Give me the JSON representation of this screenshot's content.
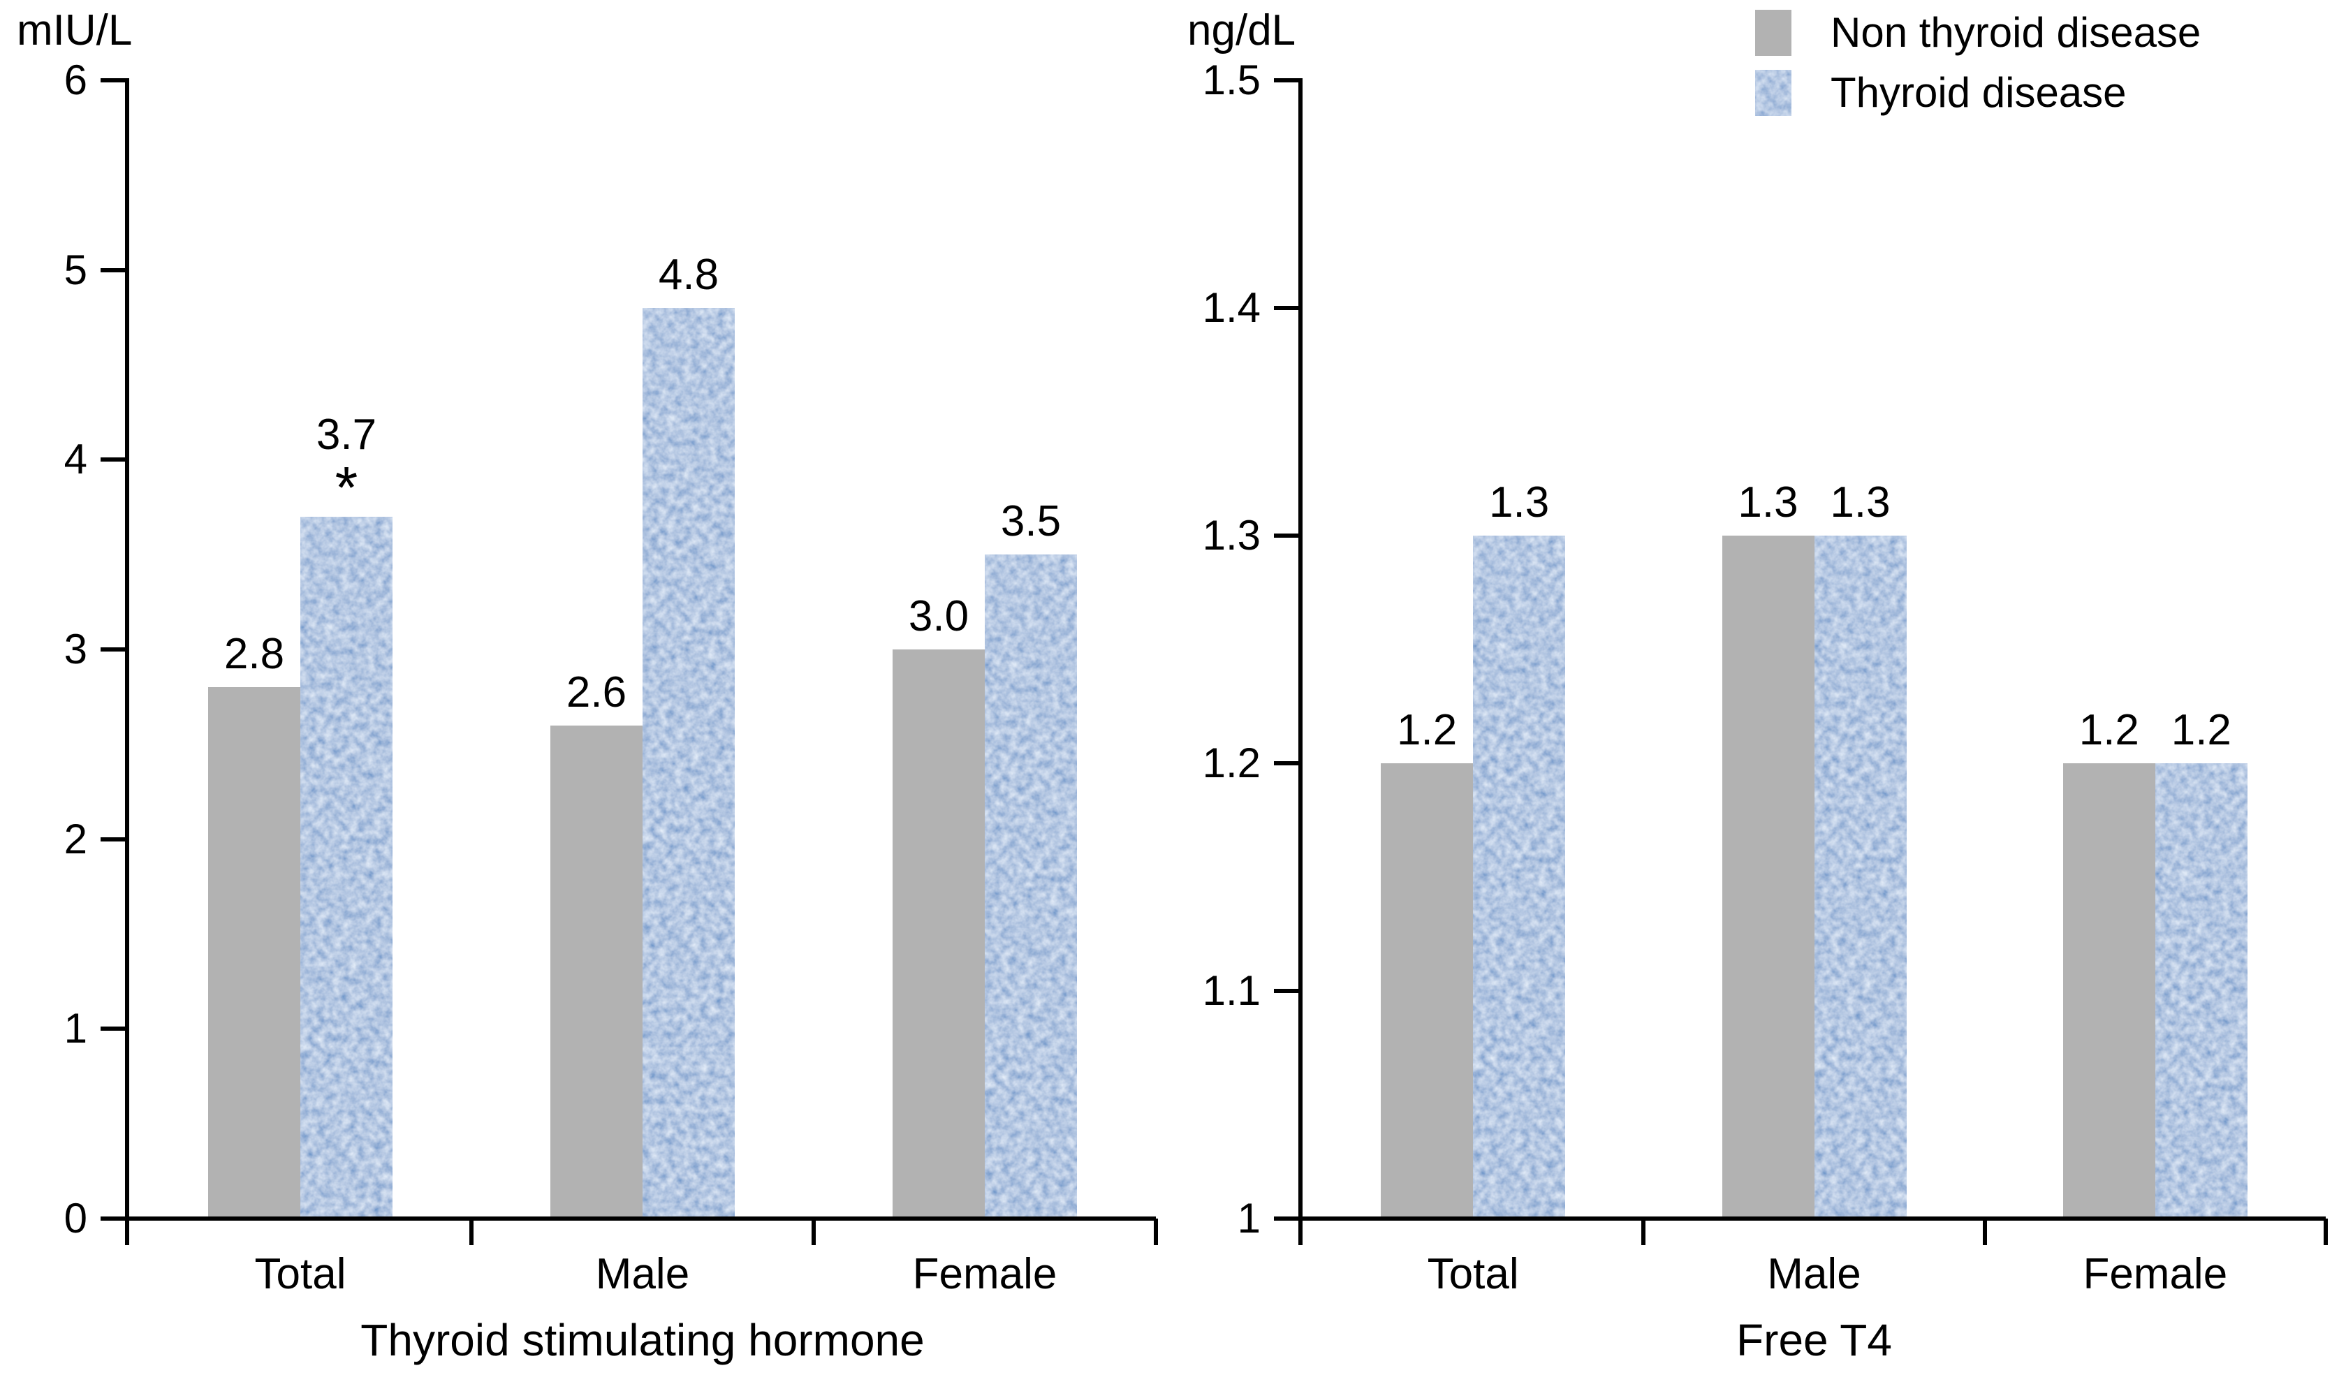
{
  "figure": {
    "legend": {
      "items": [
        {
          "label": "Non thyroid disease",
          "swatch": "gray-solid"
        },
        {
          "label": "Thyroid disease",
          "swatch": "blue-textured"
        }
      ]
    },
    "colors": {
      "gray": "#b2b2b2",
      "blue_dark": "#1d4590",
      "blue_light": "#cfe0f6",
      "axis": "#000000",
      "text": "#000000"
    }
  },
  "chart_data": [
    {
      "type": "bar",
      "panel": "left",
      "unit_label": "mIU/L",
      "xlabel": "Thyroid stimulating hormone",
      "ylabel": "mIU/L",
      "categories": [
        "Total",
        "Male",
        "Female"
      ],
      "series": [
        {
          "name": "Non thyroid disease",
          "values": [
            2.8,
            2.6,
            3.0
          ],
          "labels": [
            "2.8",
            "2.6",
            "3.0"
          ]
        },
        {
          "name": "Thyroid disease",
          "values": [
            3.7,
            4.8,
            3.5
          ],
          "labels": [
            "3.7",
            "4.8",
            "3.5"
          ]
        }
      ],
      "annotations": [
        {
          "series": 1,
          "category": 0,
          "text": "*"
        }
      ],
      "ylim": [
        0,
        6
      ],
      "yticks": [
        {
          "value": 0,
          "label": "0"
        },
        {
          "value": 1,
          "label": "1"
        },
        {
          "value": 2,
          "label": "2"
        },
        {
          "value": 3,
          "label": "3"
        },
        {
          "value": 4,
          "label": "4"
        },
        {
          "value": 5,
          "label": "5"
        },
        {
          "value": 6,
          "label": "6"
        }
      ],
      "grid": false,
      "legend_position": "top-right"
    },
    {
      "type": "bar",
      "panel": "right",
      "unit_label": "ng/dL",
      "xlabel": "Free T4",
      "ylabel": "ng/dL",
      "categories": [
        "Total",
        "Male",
        "Female"
      ],
      "series": [
        {
          "name": "Non thyroid disease",
          "values": [
            1.2,
            1.3,
            1.2
          ],
          "labels": [
            "1.2",
            "1.3",
            "1.2"
          ]
        },
        {
          "name": "Thyroid disease",
          "values": [
            1.3,
            1.3,
            1.2
          ],
          "labels": [
            "1.3",
            "1.3",
            "1.2"
          ]
        }
      ],
      "annotations": [],
      "ylim": [
        1,
        1.5
      ],
      "yticks": [
        {
          "value": 1.0,
          "label": "1"
        },
        {
          "value": 1.1,
          "label": "1.1"
        },
        {
          "value": 1.2,
          "label": "1.2"
        },
        {
          "value": 1.3,
          "label": "1.3"
        },
        {
          "value": 1.4,
          "label": "1.4"
        },
        {
          "value": 1.5,
          "label": "1.5"
        }
      ],
      "grid": false,
      "legend_position": "top-right"
    }
  ]
}
